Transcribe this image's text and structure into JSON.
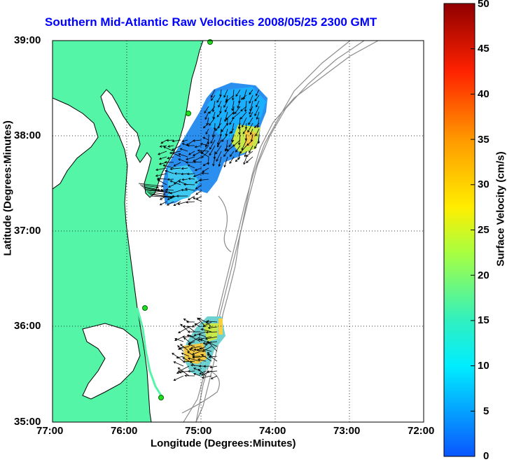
{
  "map": {
    "title": "Southern Mid-Atlantic Raw Velocities 2008/05/25 2300 GMT",
    "xlabel": "Longitude (Degrees:Minutes)",
    "ylabel": "Latitude (Degrees:Minutes)",
    "x_ticks": [
      "77:00",
      "76:00",
      "75:00",
      "74:00",
      "73:00",
      "72:00"
    ],
    "y_ticks": [
      "39:00",
      "38:00",
      "37:00",
      "36:00",
      "35:00"
    ],
    "lon_range": [
      -77,
      -72
    ],
    "lat_range": [
      35,
      39
    ],
    "colors": {
      "land": "#55f5a8",
      "coast": "#000000",
      "bathymetry": "#8c8c8c",
      "title": "#0000ff",
      "station": "#22dd22"
    }
  },
  "colorbar": {
    "label": "Surface Velocity (cm/s)",
    "ticks": [
      "50",
      "45",
      "40",
      "35",
      "30",
      "25",
      "20",
      "15",
      "10",
      "5",
      "0"
    ],
    "range": [
      0,
      50
    ]
  }
}
